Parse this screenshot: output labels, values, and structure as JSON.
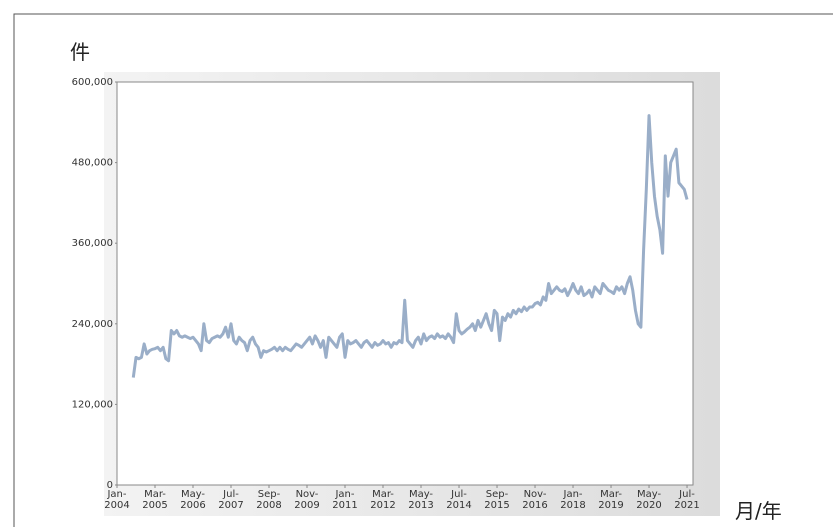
{
  "chart_data": {
    "type": "line",
    "y_label": "件",
    "x_label": "月/年",
    "color": "#9aaec8",
    "ylim": [
      0,
      600000
    ],
    "yticks": [
      {
        "value": 0,
        "label": "0"
      },
      {
        "value": 120000,
        "label": "120,000"
      },
      {
        "value": 240000,
        "label": "240,000"
      },
      {
        "value": 360000,
        "label": "360,000"
      },
      {
        "value": 480000,
        "label": "480,000"
      },
      {
        "value": 600000,
        "label": "600,000"
      }
    ],
    "categories": [
      "Jan-2004",
      null,
      null,
      null,
      null,
      null,
      null,
      null,
      null,
      null,
      null,
      null,
      null,
      null,
      "Mar-2005",
      null,
      null,
      null,
      null,
      null,
      null,
      null,
      null,
      null,
      null,
      null,
      null,
      null,
      "May-2006",
      null,
      null,
      null,
      null,
      null,
      null,
      null,
      null,
      null,
      null,
      null,
      null,
      null,
      "Jul-2007",
      null,
      null,
      null,
      null,
      null,
      null,
      null,
      null,
      null,
      null,
      null,
      null,
      null,
      "Sep-2008",
      null,
      null,
      null,
      null,
      null,
      null,
      null,
      null,
      null,
      null,
      null,
      null,
      null,
      "Nov-2009",
      null,
      null,
      null,
      null,
      null,
      null,
      null,
      null,
      null,
      null,
      null,
      null,
      null,
      "Jan-2011",
      null,
      null,
      null,
      null,
      null,
      null,
      null,
      null,
      null,
      null,
      null,
      null,
      null,
      "Mar-2012",
      null,
      null,
      null,
      null,
      null,
      null,
      null,
      null,
      null,
      null,
      null,
      null,
      null,
      "May-2013",
      null,
      null,
      null,
      null,
      null,
      null,
      null,
      null,
      null,
      null,
      null,
      null,
      null,
      "Jul-2014",
      null,
      null,
      null,
      null,
      null,
      null,
      null,
      null,
      null,
      null,
      null,
      null,
      null,
      "Sep-2015",
      null,
      null,
      null,
      null,
      null,
      null,
      null,
      null,
      null,
      null,
      null,
      null,
      null,
      "Nov-2016",
      null,
      null,
      null,
      null,
      null,
      null,
      null,
      null,
      null,
      null,
      null,
      null,
      null,
      "Jan-2018",
      null,
      null,
      null,
      null,
      null,
      null,
      null,
      null,
      null,
      null,
      null,
      null,
      null,
      "Mar-2019",
      null,
      null,
      null,
      null,
      null,
      null,
      null,
      null,
      null,
      null,
      null,
      null,
      null,
      "May-2020",
      null,
      null,
      null,
      null,
      null,
      null,
      null,
      null,
      null,
      null,
      null,
      null,
      null,
      "Jul-2021"
    ],
    "values": [
      null,
      null,
      null,
      null,
      null,
      null,
      160000,
      190000,
      188000,
      190000,
      210000,
      195000,
      200000,
      202000,
      203000,
      205000,
      200000,
      205000,
      188000,
      185000,
      230000,
      225000,
      230000,
      222000,
      220000,
      222000,
      220000,
      218000,
      220000,
      215000,
      210000,
      200000,
      240000,
      215000,
      212000,
      218000,
      220000,
      222000,
      220000,
      225000,
      235000,
      220000,
      240000,
      215000,
      210000,
      220000,
      215000,
      212000,
      200000,
      215000,
      220000,
      210000,
      205000,
      190000,
      200000,
      198000,
      200000,
      202000,
      205000,
      200000,
      205000,
      200000,
      205000,
      202000,
      200000,
      205000,
      210000,
      208000,
      205000,
      210000,
      215000,
      220000,
      210000,
      222000,
      215000,
      205000,
      215000,
      190000,
      220000,
      215000,
      210000,
      205000,
      220000,
      225000,
      190000,
      215000,
      210000,
      212000,
      215000,
      210000,
      205000,
      212000,
      215000,
      210000,
      205000,
      212000,
      208000,
      210000,
      215000,
      210000,
      212000,
      205000,
      212000,
      210000,
      215000,
      212000,
      275000,
      215000,
      210000,
      205000,
      215000,
      220000,
      210000,
      225000,
      215000,
      220000,
      222000,
      218000,
      225000,
      220000,
      222000,
      218000,
      225000,
      220000,
      212000,
      255000,
      230000,
      225000,
      228000,
      232000,
      235000,
      240000,
      230000,
      245000,
      235000,
      245000,
      255000,
      240000,
      230000,
      260000,
      255000,
      215000,
      250000,
      245000,
      255000,
      250000,
      260000,
      255000,
      262000,
      258000,
      265000,
      260000,
      265000,
      265000,
      270000,
      272000,
      268000,
      280000,
      275000,
      300000,
      285000,
      290000,
      295000,
      290000,
      288000,
      292000,
      282000,
      290000,
      300000,
      290000,
      285000,
      295000,
      282000,
      285000,
      290000,
      280000,
      295000,
      290000,
      285000,
      300000,
      295000,
      290000,
      288000,
      285000,
      295000,
      290000,
      295000,
      285000,
      300000,
      310000,
      290000,
      260000,
      240000,
      235000,
      350000,
      440000,
      550000,
      480000,
      430000,
      400000,
      380000,
      345000,
      490000,
      430000,
      480000,
      490000,
      500000,
      450000,
      445000,
      440000,
      425000
    ]
  }
}
